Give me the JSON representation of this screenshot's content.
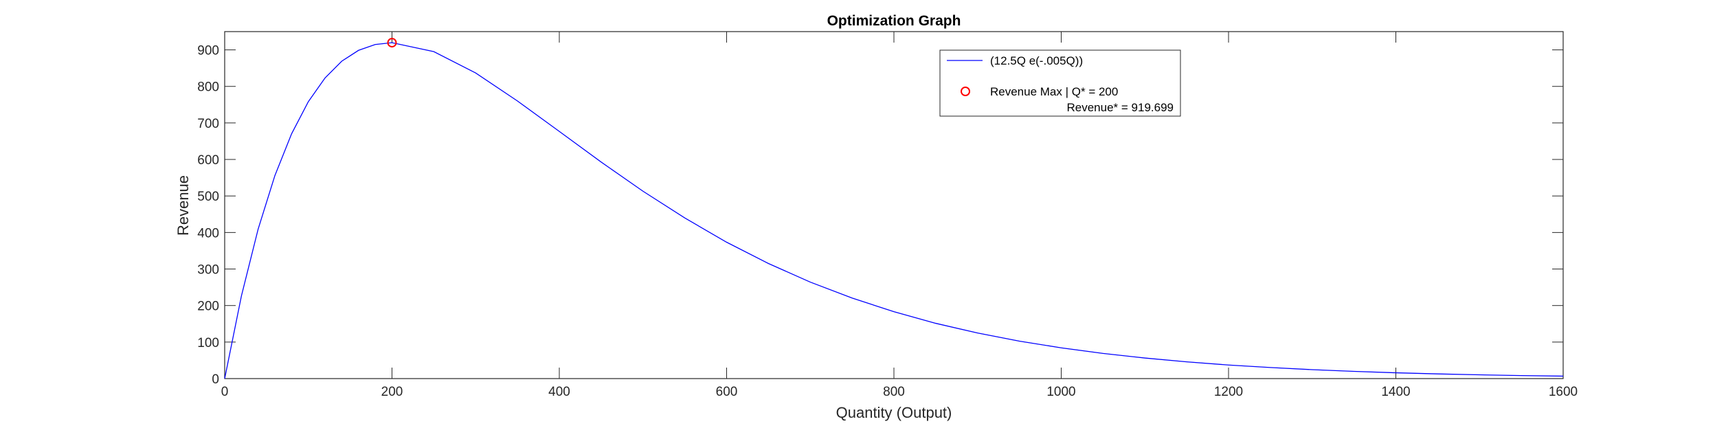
{
  "chart_data": {
    "type": "line",
    "title": "Optimization Graph",
    "xlabel": "Quantity (Output)",
    "ylabel": "Revenue",
    "xlim": [
      0,
      1600
    ],
    "ylim": [
      0,
      950
    ],
    "xticks": [
      0,
      200,
      400,
      600,
      800,
      1000,
      1200,
      1400,
      1600
    ],
    "yticks": [
      0,
      100,
      200,
      300,
      400,
      500,
      600,
      700,
      800,
      900
    ],
    "grid": false,
    "legend_position": "top-right",
    "series": [
      {
        "name": "(12.5Q e(-.005Q))",
        "color": "#0000ff",
        "x": [
          0,
          20,
          40,
          60,
          80,
          100,
          120,
          140,
          160,
          180,
          200,
          250,
          300,
          350,
          400,
          450,
          500,
          550,
          600,
          650,
          700,
          750,
          800,
          850,
          900,
          950,
          1000,
          1050,
          1100,
          1150,
          1200,
          1250,
          1300,
          1350,
          1400,
          1450,
          1500,
          1550,
          1600
        ],
        "y": [
          0,
          226.2,
          409.4,
          555.7,
          670.3,
          758.2,
          823.2,
          869.1,
          898.7,
          914.8,
          919.7,
          895.2,
          836.8,
          760.0,
          676.7,
          592.9,
          513.1,
          439.8,
          373.4,
          315.1,
          264.2,
          220.5,
          183.2,
          151.3,
          124.9,
          102.5,
          84.2,
          68.9,
          56.3,
          45.9,
          37.2,
          30.3,
          24.4,
          19.7,
          15.9,
          12.8,
          10.3,
          8.3,
          6.7
        ]
      }
    ],
    "points": [
      {
        "name": "Revenue Max | Q* = 200",
        "name_line2": "Revenue* = 919.699",
        "color": "#ff0000",
        "x": 200,
        "y": 919.699
      }
    ]
  }
}
